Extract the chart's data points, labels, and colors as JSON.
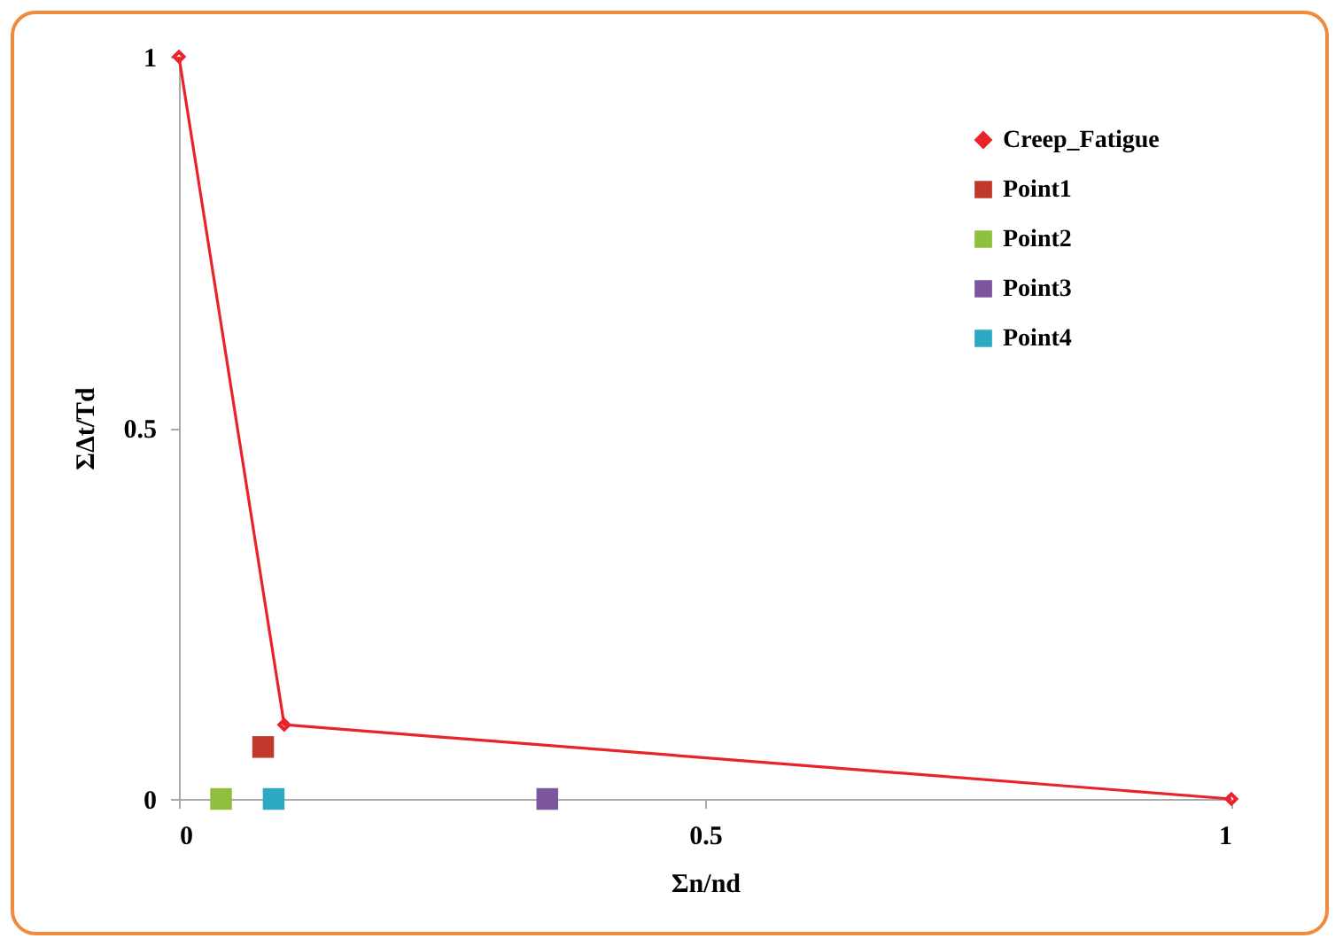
{
  "chart_data": {
    "type": "scatter",
    "xlabel": "Σn/nd",
    "ylabel": "ΣΔt/Td",
    "xlim": [
      0,
      1
    ],
    "ylim": [
      0,
      1
    ],
    "xticks": [
      0,
      0.5,
      1
    ],
    "yticks": [
      0,
      0.5,
      1
    ],
    "grid": false,
    "legend": "top right",
    "marker": "square",
    "series": [
      {
        "name": "Creep_Fatigue",
        "type": "line",
        "marker": "diamond",
        "line_style": "solid",
        "color": "#e8232b",
        "x": [
          0,
          0.1,
          1
        ],
        "values": [
          1,
          0.1,
          0
        ]
      },
      {
        "name": "Point1",
        "color": "#c0392b",
        "x": [
          0.08
        ],
        "values": [
          0.07
        ]
      },
      {
        "name": "Point2",
        "color": "#8fbf3f",
        "x": [
          0.04
        ],
        "values": [
          0
        ]
      },
      {
        "name": "Point3",
        "color": "#7b559e",
        "x": [
          0.35
        ],
        "values": [
          0
        ]
      },
      {
        "name": "Point4",
        "color": "#2ea9c4",
        "x": [
          0.09
        ],
        "values": [
          0
        ]
      }
    ]
  }
}
